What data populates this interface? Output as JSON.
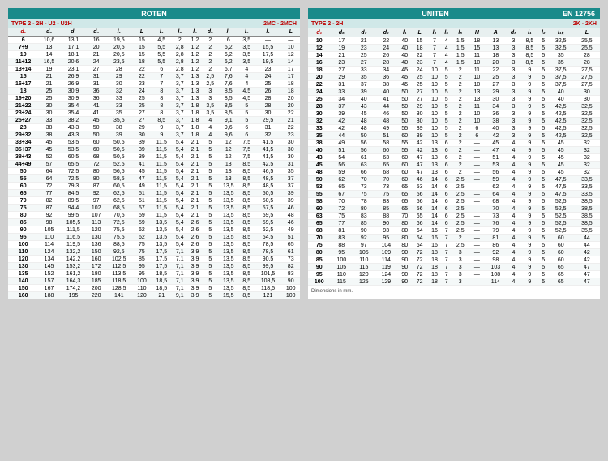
{
  "left": {
    "title": "ROTEN",
    "subLeft": "TYPE 2 - 2H - U2 - U2H",
    "subRight": "2MC - 2MCH",
    "cols": [
      "d₁",
      "d₆",
      "d₇",
      "d₄",
      "l₁",
      "L",
      "l₄",
      "l₆",
      "l₅",
      "d₈",
      "l₇",
      "l₅",
      "l₁",
      "L"
    ],
    "rows": [
      [
        "6",
        "10,6",
        "13,1",
        "16",
        "19,5",
        "15",
        "4,5",
        "2",
        "1,2",
        "2",
        "6",
        "3,5",
        "—",
        "—"
      ],
      [
        "7÷9",
        "13",
        "17,1",
        "20",
        "20,5",
        "15",
        "5,5",
        "2,8",
        "1,2",
        "2",
        "6,2",
        "3,5",
        "15,5",
        "10"
      ],
      [
        "10",
        "14",
        "18,1",
        "21",
        "20,5",
        "15",
        "5,5",
        "2,8",
        "1,2",
        "2",
        "6,2",
        "3,5",
        "17,5",
        "12"
      ],
      [
        "11÷12",
        "16,5",
        "20,6",
        "24",
        "23,5",
        "18",
        "5,5",
        "2,8",
        "1,2",
        "2",
        "6,2",
        "3,5",
        "19,5",
        "14"
      ],
      [
        "13÷14",
        "19",
        "23,1",
        "27",
        "28",
        "22",
        "6",
        "2,8",
        "1,2",
        "2",
        "6,7",
        "4",
        "23",
        "17"
      ],
      [
        "15",
        "21",
        "26,9",
        "31",
        "29",
        "22",
        "7",
        "3,7",
        "1,3",
        "2,5",
        "7,6",
        "4",
        "24",
        "17"
      ],
      [
        "16÷17",
        "21",
        "26,9",
        "31",
        "30",
        "23",
        "7",
        "3,7",
        "1,3",
        "2,5",
        "7,6",
        "4",
        "25",
        "18"
      ],
      [
        "18",
        "25",
        "30,9",
        "36",
        "32",
        "24",
        "8",
        "3,7",
        "1,3",
        "3",
        "8,5",
        "4,5",
        "26",
        "18"
      ],
      [
        "19÷20",
        "25",
        "30,9",
        "36",
        "33",
        "25",
        "8",
        "3,7",
        "1,3",
        "3",
        "8,5",
        "4,5",
        "28",
        "20"
      ],
      [
        "21÷22",
        "30",
        "35,4",
        "41",
        "33",
        "25",
        "8",
        "3,7",
        "1,8",
        "3,5",
        "8,5",
        "5",
        "28",
        "20"
      ],
      [
        "23÷24",
        "30",
        "35,4",
        "41",
        "35",
        "27",
        "8",
        "3,7",
        "1,8",
        "3,5",
        "8,5",
        "5",
        "30",
        "22"
      ],
      [
        "25÷27",
        "33",
        "38,2",
        "45",
        "35,5",
        "27",
        "8,5",
        "3,7",
        "1,8",
        "4",
        "9,1",
        "5",
        "29,5",
        "21"
      ],
      [
        "28",
        "38",
        "43,3",
        "50",
        "38",
        "29",
        "9",
        "3,7",
        "1,8",
        "4",
        "9,6",
        "6",
        "31",
        "22"
      ],
      [
        "29÷32",
        "38",
        "43,3",
        "50",
        "39",
        "30",
        "9",
        "3,7",
        "1,8",
        "4",
        "9,6",
        "6",
        "32",
        "23"
      ],
      [
        "33÷34",
        "45",
        "53,5",
        "60",
        "50,5",
        "39",
        "11,5",
        "5,4",
        "2,1",
        "5",
        "12",
        "7,5",
        "41,5",
        "30"
      ],
      [
        "35÷37",
        "45",
        "53,5",
        "60",
        "50,5",
        "39",
        "11,5",
        "5,4",
        "2,1",
        "5",
        "12",
        "7,5",
        "41,5",
        "30"
      ],
      [
        "38÷43",
        "52",
        "60,5",
        "68",
        "50,5",
        "39",
        "11,5",
        "5,4",
        "2,1",
        "5",
        "12",
        "7,5",
        "41,5",
        "30"
      ],
      [
        "44÷49",
        "57",
        "65,5",
        "72",
        "52,5",
        "41",
        "11,5",
        "5,4",
        "2,1",
        "5",
        "13",
        "8,5",
        "42,5",
        "31"
      ],
      [
        "50",
        "64",
        "72,5",
        "80",
        "56,5",
        "45",
        "11,5",
        "5,4",
        "2,1",
        "5",
        "13",
        "8,5",
        "46,5",
        "35"
      ],
      [
        "55",
        "64",
        "72,5",
        "80",
        "58,5",
        "47",
        "11,5",
        "5,4",
        "2,1",
        "5",
        "13",
        "8,5",
        "48,5",
        "37"
      ],
      [
        "60",
        "72",
        "79,3",
        "87",
        "60,5",
        "49",
        "11,5",
        "5,4",
        "2,1",
        "5",
        "13,5",
        "8,5",
        "48,5",
        "37"
      ],
      [
        "65",
        "77",
        "84,5",
        "92",
        "62,5",
        "51",
        "11,5",
        "5,4",
        "2,1",
        "5",
        "13,5",
        "8,5",
        "50,5",
        "39"
      ],
      [
        "70",
        "82",
        "89,5",
        "97",
        "62,5",
        "51",
        "11,5",
        "5,4",
        "2,1",
        "5",
        "13,5",
        "8,5",
        "50,5",
        "39"
      ],
      [
        "75",
        "87",
        "94,4",
        "102",
        "68,5",
        "57",
        "11,5",
        "5,4",
        "2,1",
        "5",
        "13,5",
        "8,5",
        "57,5",
        "46"
      ],
      [
        "80",
        "92",
        "99,5",
        "107",
        "70,5",
        "59",
        "11,5",
        "5,4",
        "2,1",
        "5",
        "13,5",
        "8,5",
        "59,5",
        "48"
      ],
      [
        "85",
        "98",
        "105,5",
        "113",
        "72,5",
        "59",
        "13,5",
        "5,4",
        "2,6",
        "5",
        "13,5",
        "8,5",
        "59,5",
        "46"
      ],
      [
        "90",
        "105",
        "111,5",
        "120",
        "75,5",
        "62",
        "13,5",
        "5,4",
        "2,6",
        "5",
        "13,5",
        "8,5",
        "62,5",
        "49"
      ],
      [
        "95",
        "110",
        "116,5",
        "130",
        "75,5",
        "62",
        "13,5",
        "5,4",
        "2,6",
        "5",
        "13,5",
        "8,5",
        "64,5",
        "51"
      ],
      [
        "100",
        "114",
        "119,5",
        "136",
        "88,5",
        "75",
        "13,5",
        "5,4",
        "2,6",
        "5",
        "13,5",
        "8,5",
        "78,5",
        "65"
      ],
      [
        "110",
        "124",
        "132,2",
        "150",
        "92,5",
        "75",
        "17,5",
        "7,1",
        "3,9",
        "5",
        "13,5",
        "8,5",
        "78,5",
        "61"
      ],
      [
        "120",
        "134",
        "142,2",
        "160",
        "102,5",
        "85",
        "17,5",
        "7,1",
        "3,9",
        "5",
        "13,5",
        "8,5",
        "90,5",
        "73"
      ],
      [
        "130",
        "145",
        "153,2",
        "172",
        "112,5",
        "95",
        "17,5",
        "7,1",
        "3,9",
        "5",
        "13,5",
        "8,5",
        "99,5",
        "82"
      ],
      [
        "135",
        "152",
        "161,2",
        "180",
        "113,5",
        "95",
        "18,5",
        "7,1",
        "3,9",
        "5",
        "13,5",
        "8,5",
        "101,5",
        "83"
      ],
      [
        "140",
        "157",
        "164,3",
        "185",
        "118,5",
        "100",
        "18,5",
        "7,1",
        "3,9",
        "5",
        "13,5",
        "8,5",
        "108,5",
        "90"
      ],
      [
        "150",
        "167",
        "174,2",
        "200",
        "128,5",
        "110",
        "18,5",
        "7,1",
        "3,9",
        "5",
        "13,5",
        "8,5",
        "118,5",
        "100"
      ],
      [
        "160",
        "188",
        "195",
        "220",
        "141",
        "120",
        "21",
        "9,1",
        "3,9",
        "5",
        "15,5",
        "8,5",
        "121",
        "100"
      ]
    ]
  },
  "right": {
    "title": "UNITEN",
    "titleRight": "EN 12756",
    "subLeft": "TYPE 2 - 2H",
    "subRight": "2K - 2KH",
    "cols": [
      "d₁",
      "d₆",
      "d₇",
      "d₄",
      "l₁",
      "L",
      "l₄",
      "l₆",
      "l₅",
      "H",
      "A",
      "d₈",
      "l₁",
      "l₂",
      "l₁ₖ",
      "L"
    ],
    "rows": [
      [
        "10",
        "17",
        "21",
        "22",
        "40",
        "15",
        "7",
        "4",
        "1,5",
        "18",
        "13",
        "3",
        "8,5",
        "5",
        "32,5",
        "25,5"
      ],
      [
        "12",
        "19",
        "23",
        "24",
        "40",
        "18",
        "7",
        "4",
        "1,5",
        "15",
        "13",
        "3",
        "8,5",
        "5",
        "32,5",
        "25,5"
      ],
      [
        "14",
        "21",
        "25",
        "26",
        "40",
        "22",
        "7",
        "4",
        "1,5",
        "11",
        "18",
        "3",
        "8,5",
        "5",
        "35",
        "28"
      ],
      [
        "16",
        "23",
        "27",
        "28",
        "40",
        "23",
        "7",
        "4",
        "1,5",
        "10",
        "20",
        "3",
        "8,5",
        "5",
        "35",
        "28"
      ],
      [
        "18",
        "27",
        "33",
        "34",
        "45",
        "24",
        "10",
        "5",
        "2",
        "11",
        "22",
        "3",
        "9",
        "5",
        "37,5",
        "27,5"
      ],
      [
        "20",
        "29",
        "35",
        "36",
        "45",
        "25",
        "10",
        "5",
        "2",
        "10",
        "25",
        "3",
        "9",
        "5",
        "37,5",
        "27,5"
      ],
      [
        "22",
        "31",
        "37",
        "38",
        "45",
        "25",
        "10",
        "5",
        "2",
        "10",
        "27",
        "3",
        "9",
        "5",
        "37,5",
        "27,5"
      ],
      [
        "24",
        "33",
        "39",
        "40",
        "50",
        "27",
        "10",
        "5",
        "2",
        "13",
        "29",
        "3",
        "9",
        "5",
        "40",
        "30"
      ],
      [
        "25",
        "34",
        "40",
        "41",
        "50",
        "27",
        "10",
        "5",
        "2",
        "13",
        "30",
        "3",
        "9",
        "5",
        "40",
        "30"
      ],
      [
        "28",
        "37",
        "43",
        "44",
        "50",
        "29",
        "10",
        "5",
        "2",
        "11",
        "34",
        "3",
        "9",
        "5",
        "42,5",
        "32,5"
      ],
      [
        "30",
        "39",
        "45",
        "46",
        "50",
        "30",
        "10",
        "5",
        "2",
        "10",
        "36",
        "3",
        "9",
        "5",
        "42,5",
        "32,5"
      ],
      [
        "32",
        "42",
        "48",
        "48",
        "50",
        "30",
        "10",
        "5",
        "2",
        "10",
        "38",
        "3",
        "9",
        "5",
        "42,5",
        "32,5"
      ],
      [
        "33",
        "42",
        "48",
        "49",
        "55",
        "39",
        "10",
        "5",
        "2",
        "6",
        "40",
        "3",
        "9",
        "5",
        "42,5",
        "32,5"
      ],
      [
        "35",
        "44",
        "50",
        "51",
        "60",
        "39",
        "10",
        "5",
        "2",
        "6",
        "42",
        "3",
        "9",
        "5",
        "42,5",
        "32,5"
      ],
      [
        "38",
        "49",
        "56",
        "58",
        "55",
        "42",
        "13",
        "6",
        "2",
        "—",
        "45",
        "4",
        "9",
        "5",
        "45",
        "32"
      ],
      [
        "40",
        "51",
        "56",
        "60",
        "55",
        "42",
        "13",
        "6",
        "2",
        "—",
        "47",
        "4",
        "9",
        "5",
        "45",
        "32"
      ],
      [
        "43",
        "54",
        "61",
        "63",
        "60",
        "47",
        "13",
        "6",
        "2",
        "—",
        "51",
        "4",
        "9",
        "5",
        "45",
        "32"
      ],
      [
        "45",
        "56",
        "63",
        "65",
        "60",
        "47",
        "13",
        "6",
        "2",
        "—",
        "53",
        "4",
        "9",
        "5",
        "45",
        "32"
      ],
      [
        "48",
        "59",
        "66",
        "68",
        "60",
        "47",
        "13",
        "6",
        "2",
        "—",
        "56",
        "4",
        "9",
        "5",
        "45",
        "32"
      ],
      [
        "50",
        "62",
        "70",
        "70",
        "60",
        "46",
        "14",
        "6",
        "2,5",
        "—",
        "59",
        "4",
        "9",
        "5",
        "47,5",
        "33,5"
      ],
      [
        "53",
        "65",
        "73",
        "73",
        "65",
        "53",
        "14",
        "6",
        "2,5",
        "—",
        "62",
        "4",
        "9",
        "5",
        "47,5",
        "33,5"
      ],
      [
        "55",
        "67",
        "75",
        "75",
        "65",
        "56",
        "14",
        "6",
        "2,5",
        "—",
        "64",
        "4",
        "9",
        "5",
        "47,5",
        "33,5"
      ],
      [
        "58",
        "70",
        "78",
        "83",
        "65",
        "56",
        "14",
        "6",
        "2,5",
        "—",
        "68",
        "4",
        "9",
        "5",
        "52,5",
        "38,5"
      ],
      [
        "60",
        "72",
        "80",
        "85",
        "65",
        "56",
        "14",
        "6",
        "2,5",
        "—",
        "70",
        "4",
        "9",
        "5",
        "52,5",
        "38,5"
      ],
      [
        "63",
        "75",
        "83",
        "88",
        "70",
        "65",
        "14",
        "6",
        "2,5",
        "—",
        "73",
        "4",
        "9",
        "5",
        "52,5",
        "38,5"
      ],
      [
        "65",
        "77",
        "85",
        "90",
        "80",
        "66",
        "14",
        "6",
        "2,5",
        "—",
        "76",
        "4",
        "9",
        "5",
        "52,5",
        "38,5"
      ],
      [
        "68",
        "81",
        "90",
        "93",
        "80",
        "64",
        "16",
        "7",
        "2,5",
        "—",
        "79",
        "4",
        "9",
        "5",
        "52,5",
        "35,5"
      ],
      [
        "70",
        "83",
        "92",
        "95",
        "80",
        "64",
        "16",
        "7",
        "2",
        "—",
        "81",
        "4",
        "9",
        "5",
        "60",
        "44"
      ],
      [
        "75",
        "88",
        "97",
        "104",
        "80",
        "64",
        "16",
        "7",
        "2,5",
        "—",
        "86",
        "4",
        "9",
        "5",
        "60",
        "44"
      ],
      [
        "80",
        "95",
        "105",
        "109",
        "90",
        "72",
        "18",
        "7",
        "3",
        "—",
        "92",
        "4",
        "9",
        "5",
        "60",
        "42"
      ],
      [
        "85",
        "100",
        "110",
        "114",
        "90",
        "72",
        "18",
        "7",
        "3",
        "—",
        "98",
        "4",
        "9",
        "5",
        "60",
        "42"
      ],
      [
        "90",
        "105",
        "115",
        "119",
        "90",
        "72",
        "18",
        "7",
        "3",
        "—",
        "103",
        "4",
        "9",
        "5",
        "65",
        "47"
      ],
      [
        "95",
        "110",
        "120",
        "124",
        "90",
        "72",
        "18",
        "7",
        "3",
        "—",
        "108",
        "4",
        "9",
        "5",
        "65",
        "47"
      ],
      [
        "100",
        "115",
        "125",
        "129",
        "90",
        "72",
        "18",
        "7",
        "3",
        "—",
        "114",
        "4",
        "9",
        "5",
        "65",
        "47"
      ]
    ],
    "footer": "Dimensions in mm."
  }
}
